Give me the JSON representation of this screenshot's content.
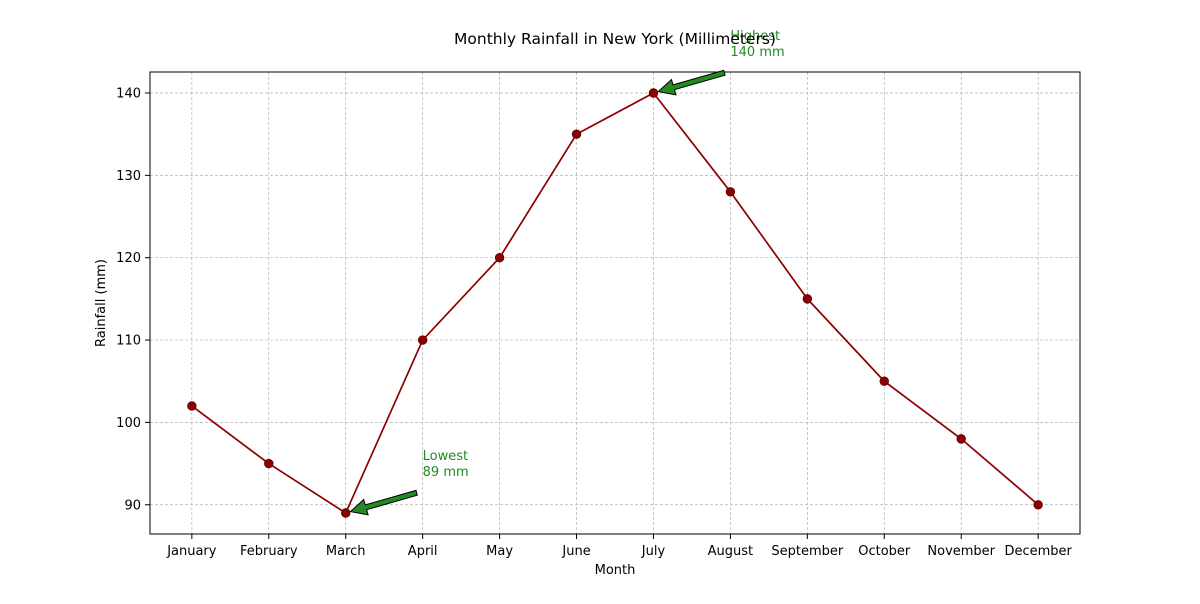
{
  "chart_data": {
    "type": "line",
    "title": "Monthly Rainfall in New York (Millimeters)",
    "xlabel": "Month",
    "ylabel": "Rainfall (mm)",
    "categories": [
      "January",
      "February",
      "March",
      "April",
      "May",
      "June",
      "July",
      "August",
      "September",
      "October",
      "November",
      "December"
    ],
    "series": [
      {
        "values": [
          102,
          95,
          89,
          110,
          120,
          135,
          140,
          128,
          115,
          105,
          98,
          90
        ],
        "color": "#8b0000"
      }
    ],
    "ylim": [
      86.45,
      142.55
    ],
    "yticks": [
      90,
      100,
      110,
      120,
      130,
      140
    ],
    "grid": true,
    "annotations": [
      {
        "label": "Lowest",
        "value_text": "89 mm",
        "category": "March",
        "value": 89,
        "color": "#228b22"
      },
      {
        "label": "Highest",
        "value_text": "140 mm",
        "category": "July",
        "value": 140,
        "color": "#228b22"
      }
    ]
  }
}
